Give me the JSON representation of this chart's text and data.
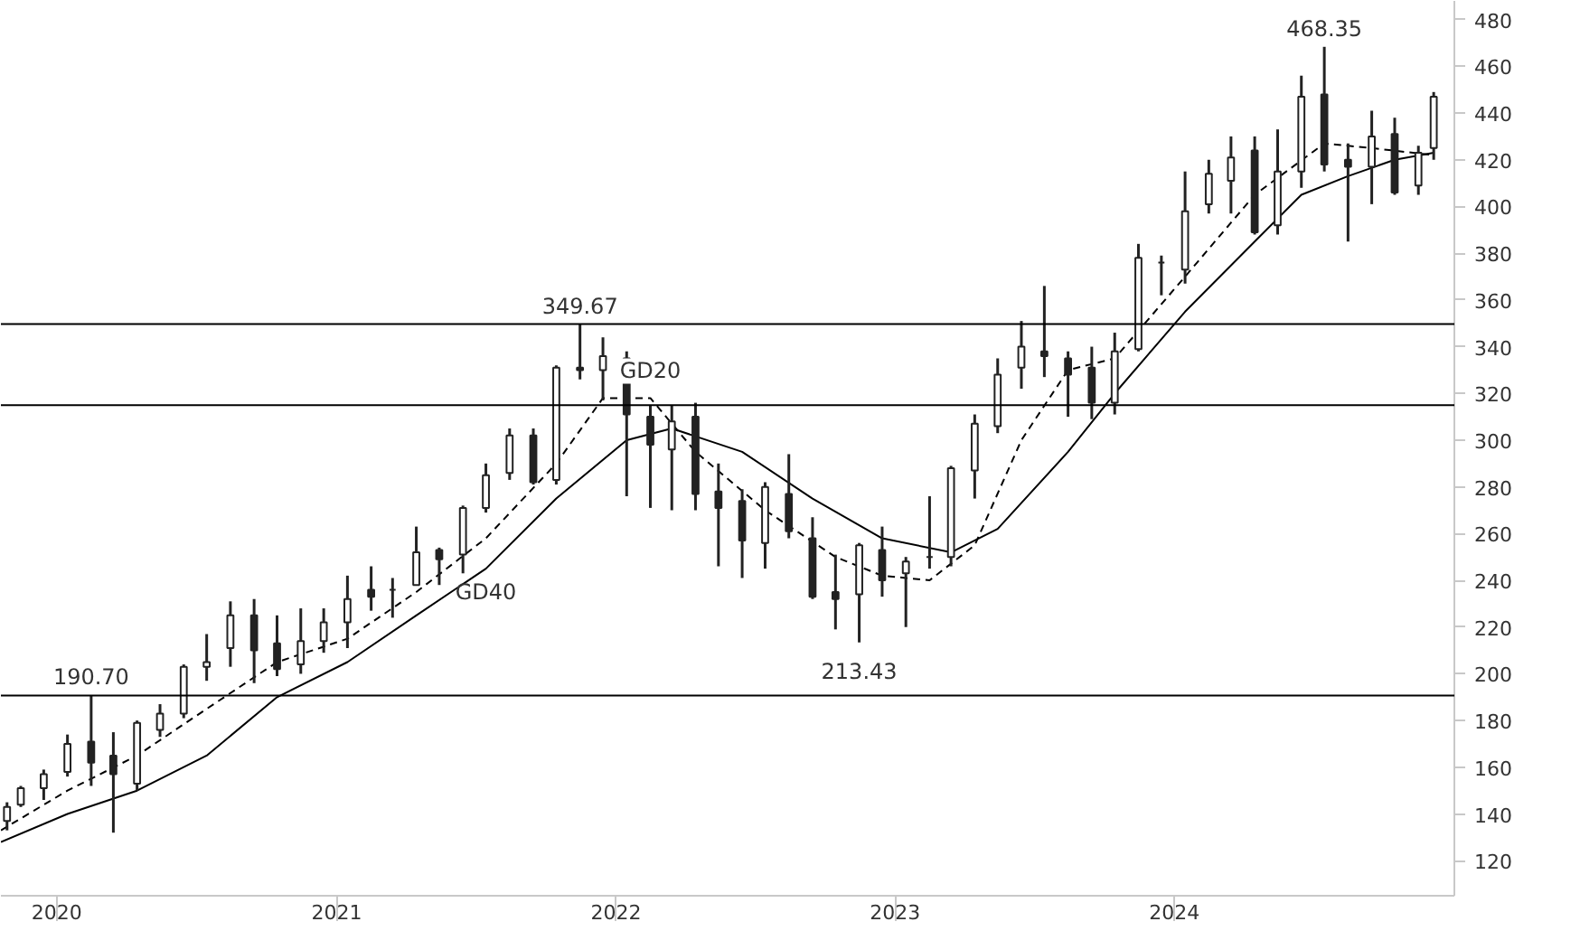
{
  "chart_data": {
    "type": "candlestick",
    "x": [
      "2019-10-28",
      "2019-11-15",
      "2019-12-15",
      "2020-01-15",
      "2020-02-15",
      "2020-03-15",
      "2020-04-15",
      "2020-05-15",
      "2020-06-15",
      "2020-07-15",
      "2020-08-15",
      "2020-09-15",
      "2020-10-15",
      "2020-11-15",
      "2020-12-15",
      "2021-01-15",
      "2021-02-15",
      "2021-03-15",
      "2021-04-15",
      "2021-05-15",
      "2021-06-15",
      "2021-07-15",
      "2021-08-15",
      "2021-09-15",
      "2021-10-15",
      "2021-11-15",
      "2021-12-15",
      "2022-01-15",
      "2022-02-15",
      "2022-03-15",
      "2022-04-15",
      "2022-05-15",
      "2022-06-15",
      "2022-07-15",
      "2022-08-15",
      "2022-09-15",
      "2022-10-15",
      "2022-11-15",
      "2022-12-15",
      "2023-01-15",
      "2023-02-15",
      "2023-03-15",
      "2023-04-15",
      "2023-05-15",
      "2023-06-15",
      "2023-07-15",
      "2023-08-15",
      "2023-09-15",
      "2023-10-15",
      "2023-11-15",
      "2023-12-15",
      "2024-01-15",
      "2024-02-15",
      "2024-03-15",
      "2024-04-15",
      "2024-05-15",
      "2024-06-15",
      "2024-07-15",
      "2024-08-15",
      "2024-09-15",
      "2024-10-15",
      "2024-11-15",
      "2024-12-05"
    ],
    "ohlc": [
      [
        137,
        145,
        133,
        143
      ],
      [
        144,
        152,
        143,
        151
      ],
      [
        151,
        159,
        146,
        157
      ],
      [
        158,
        174,
        156,
        170
      ],
      [
        171,
        190.7,
        152,
        162
      ],
      [
        165,
        175,
        132,
        157
      ],
      [
        153,
        180,
        150,
        179
      ],
      [
        176,
        187,
        173,
        183
      ],
      [
        183,
        204,
        181,
        203
      ],
      [
        203,
        217,
        197,
        205
      ],
      [
        211,
        231,
        203,
        225
      ],
      [
        225,
        232,
        196,
        210
      ],
      [
        213,
        225,
        199,
        202
      ],
      [
        204,
        228,
        200,
        214
      ],
      [
        214,
        228,
        209,
        222
      ],
      [
        222,
        242,
        211,
        232
      ],
      [
        236,
        246,
        227,
        233
      ],
      [
        236,
        241,
        224,
        236
      ],
      [
        238,
        263,
        238,
        252
      ],
      [
        253,
        254,
        238,
        249
      ],
      [
        251,
        272,
        243,
        271
      ],
      [
        271,
        290,
        269,
        285
      ],
      [
        286,
        305,
        283,
        302
      ],
      [
        302,
        305,
        281,
        282
      ],
      [
        283,
        332,
        281,
        331
      ],
      [
        331,
        349.67,
        326,
        330
      ],
      [
        330,
        344,
        317,
        336
      ],
      [
        335,
        338,
        276,
        311
      ],
      [
        310,
        315,
        271,
        298
      ],
      [
        296,
        315,
        270,
        308
      ],
      [
        310,
        316,
        270,
        277
      ],
      [
        278,
        290,
        246,
        271
      ],
      [
        274,
        279,
        241,
        257
      ],
      [
        256,
        282,
        245,
        280
      ],
      [
        277,
        294,
        258,
        261
      ],
      [
        258,
        267,
        232,
        233
      ],
      [
        235,
        251,
        219,
        232
      ],
      [
        234,
        256,
        213.43,
        255
      ],
      [
        253,
        263,
        233,
        240
      ],
      [
        243,
        250,
        220,
        248
      ],
      [
        250,
        276,
        245,
        250
      ],
      [
        250,
        289,
        246,
        288
      ],
      [
        287,
        311,
        275,
        307
      ],
      [
        306,
        335,
        303,
        328
      ],
      [
        331,
        351,
        322,
        340
      ],
      [
        338,
        366,
        327,
        336
      ],
      [
        335,
        338,
        310,
        328
      ],
      [
        331,
        340,
        309,
        316
      ],
      [
        316,
        346,
        311,
        338
      ],
      [
        339,
        384,
        338,
        378
      ],
      [
        376,
        379,
        362,
        376
      ],
      [
        373,
        415,
        367,
        398
      ],
      [
        401,
        420,
        397,
        414
      ],
      [
        411,
        430,
        397,
        421
      ],
      [
        424,
        430,
        388,
        389
      ],
      [
        392,
        433,
        388,
        415
      ],
      [
        415,
        456,
        408,
        447
      ],
      [
        448,
        468.35,
        415,
        418
      ],
      [
        420,
        427,
        385,
        417
      ],
      [
        417,
        441,
        401,
        430
      ],
      [
        431,
        438,
        405,
        406
      ],
      [
        409,
        426,
        405,
        423
      ],
      [
        425,
        449,
        420,
        447
      ]
    ],
    "series": [
      {
        "type": "line",
        "line_style": "dashed",
        "color": "#000000",
        "x": [
          "2019-10-20",
          "2020-01-15",
          "2020-04-15",
          "2020-07-15",
          "2020-10-15",
          "2021-01-15",
          "2021-04-15",
          "2021-07-15",
          "2021-10-15",
          "2021-12-15",
          "2022-02-15",
          "2022-04-15",
          "2022-07-15",
          "2022-10-15",
          "2022-12-15",
          "2023-02-15",
          "2023-04-15",
          "2023-06-15",
          "2023-08-15",
          "2023-10-15",
          "2024-01-15",
          "2024-04-15",
          "2024-07-15",
          "2024-09-15",
          "2024-12-05"
        ],
        "values": [
          133,
          150,
          165,
          185,
          205,
          215,
          235,
          258,
          290,
          318,
          318,
          295,
          270,
          250,
          242,
          240,
          255,
          300,
          330,
          335,
          370,
          405,
          427,
          425,
          422
        ]
      },
      {
        "type": "line",
        "line_style": "solid",
        "color": "#000000",
        "x": [
          "2019-10-20",
          "2020-01-15",
          "2020-04-15",
          "2020-07-15",
          "2020-10-15",
          "2021-01-15",
          "2021-04-15",
          "2021-07-15",
          "2021-10-15",
          "2022-01-15",
          "2022-03-15",
          "2022-06-15",
          "2022-09-15",
          "2022-12-15",
          "2023-03-15",
          "2023-05-15",
          "2023-08-15",
          "2023-10-15",
          "2024-01-15",
          "2024-04-15",
          "2024-06-15",
          "2024-08-15",
          "2024-10-15",
          "2024-12-05"
        ],
        "values": [
          128,
          140,
          150,
          165,
          190,
          205,
          225,
          245,
          275,
          300,
          305,
          295,
          275,
          258,
          252,
          262,
          295,
          320,
          355,
          385,
          405,
          413,
          420,
          423
        ]
      }
    ],
    "ref_lines": [
      {
        "axis": "y",
        "value": 190.7,
        "color": "#000000"
      },
      {
        "axis": "y",
        "value": 349.67,
        "color": "#000000"
      },
      {
        "axis": "y",
        "value": 315,
        "color": "#000000"
      }
    ],
    "annotations": [
      {
        "text": "468.35",
        "x": "2024-07-15",
        "y": 468.35
      },
      {
        "text": "349.67",
        "x": "2021-11-15",
        "y": 349.67
      },
      {
        "text": "213.43",
        "x": "2022-11-15",
        "y": 213.43
      },
      {
        "text": "190.70",
        "x": "2020-02-15",
        "y": 190.7
      },
      {
        "text": "GD20",
        "x": "2022-02-15",
        "y": 318
      },
      {
        "text": "GD40",
        "x": "2021-07-15",
        "y": 245
      }
    ],
    "xlim": [
      "2019-10-20",
      "2025-01-01"
    ],
    "xticks": [
      {
        "value": "2020",
        "label": "2020"
      },
      {
        "value": "2021",
        "label": "2021"
      },
      {
        "value": "2022",
        "label": "2022"
      },
      {
        "value": "2023",
        "label": "2023"
      },
      {
        "value": "2024",
        "label": "2024"
      }
    ],
    "ylim": [
      105,
      488
    ],
    "yticks": [
      120,
      140,
      160,
      180,
      200,
      220,
      240,
      260,
      280,
      300,
      320,
      340,
      360,
      380,
      400,
      420,
      440,
      460,
      480
    ],
    "grid": false
  }
}
